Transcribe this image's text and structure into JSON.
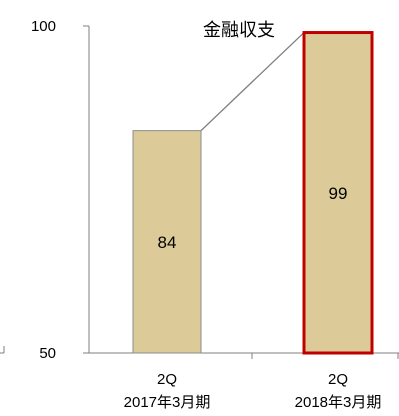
{
  "chart_data": {
    "type": "bar",
    "title": "金融収支",
    "categories": [
      [
        "2Q",
        "2017年3月期"
      ],
      [
        "2Q",
        "2018年3月期"
      ]
    ],
    "values": [
      84,
      99
    ],
    "ylim": [
      50,
      100
    ],
    "yticks": [
      "50",
      "100"
    ],
    "grid": false,
    "colors": {
      "bar_fill": "#dccb99",
      "bar_stroke": "#8c8c8c",
      "highlight_stroke": "#c00000",
      "axis": "#7f7f7f",
      "connector": "#7f7f7f"
    },
    "highlight_index": 1
  }
}
